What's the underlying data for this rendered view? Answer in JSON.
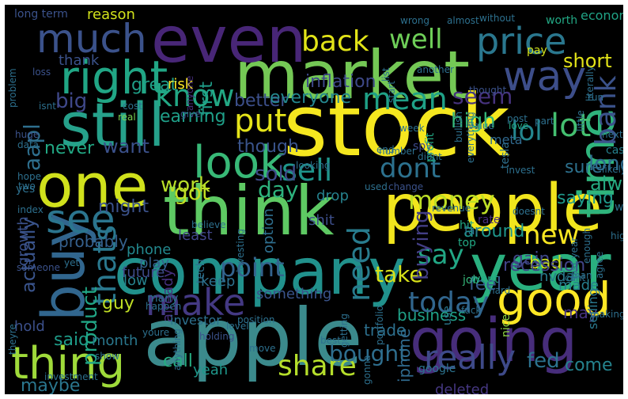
{
  "words": [
    {
      "text": "stock",
      "color": "#f5e71f"
    },
    {
      "text": "apple",
      "color": "#3b8a8c"
    },
    {
      "text": "market",
      "color": "#74c855"
    },
    {
      "text": "people",
      "color": "#f1e51d"
    },
    {
      "text": "think",
      "color": "#5ec963"
    },
    {
      "text": "company",
      "color": "#21918c"
    },
    {
      "text": "still",
      "color": "#26a18b"
    },
    {
      "text": "one",
      "color": "#d0e11c"
    },
    {
      "text": "even",
      "color": "#482677"
    },
    {
      "text": "going",
      "color": "#472d7b"
    },
    {
      "text": "year",
      "color": "#2ab07f"
    },
    {
      "text": "buy",
      "color": "#31668e"
    },
    {
      "text": "time",
      "color": "#2fb47c"
    },
    {
      "text": "price",
      "color": "#2a778e"
    },
    {
      "text": "right",
      "color": "#21a685"
    },
    {
      "text": "much",
      "color": "#3b528b"
    },
    {
      "text": "way",
      "color": "#3d4e8a"
    },
    {
      "text": "good",
      "color": "#fde725"
    },
    {
      "text": "thing",
      "color": "#9fda3a"
    },
    {
      "text": "look",
      "color": "#38b977"
    },
    {
      "text": "see",
      "color": "#2b758e"
    },
    {
      "text": "make",
      "color": "#443983"
    },
    {
      "text": "know",
      "color": "#22a884"
    },
    {
      "text": "back",
      "color": "#e2e418"
    },
    {
      "text": "well",
      "color": "#6ece58"
    },
    {
      "text": "put",
      "color": "#e5e419"
    },
    {
      "text": "lot",
      "color": "#44bf70"
    },
    {
      "text": "lol",
      "color": "#24868e"
    },
    {
      "text": "sell",
      "color": "#1f958b"
    },
    {
      "text": "dont",
      "color": "#2c718e"
    },
    {
      "text": "mean",
      "color": "#1fa187"
    },
    {
      "text": "money",
      "color": "#bddf26"
    },
    {
      "text": "need",
      "color": "#287c8e"
    },
    {
      "text": "really",
      "color": "#3e4a89"
    },
    {
      "text": "today",
      "color": "#31668e"
    },
    {
      "text": "share",
      "color": "#b5de2b"
    },
    {
      "text": "bank",
      "color": "#3b528b"
    },
    {
      "text": "new",
      "color": "#f8e621"
    },
    {
      "text": "thats",
      "color": "#2a788e"
    },
    {
      "text": "say",
      "color": "#22a785"
    },
    {
      "text": "aapl",
      "color": "#2e6f8e"
    },
    {
      "text": "big",
      "color": "#3f4889"
    },
    {
      "text": "sold",
      "color": "#3e4c8a"
    },
    {
      "text": "fed",
      "color": "#2c728e"
    },
    {
      "text": "seem",
      "color": "#46327e"
    },
    {
      "text": "high",
      "color": "#35b779"
    },
    {
      "text": "want",
      "color": "#3b518b"
    },
    {
      "text": "never",
      "color": "#22a884"
    },
    {
      "text": "got",
      "color": "#c2df23"
    },
    {
      "text": "day",
      "color": "#2db27d"
    },
    {
      "text": "work",
      "color": "#b8de29"
    },
    {
      "text": "point",
      "color": "#33638d"
    },
    {
      "text": "take",
      "color": "#d8e219"
    },
    {
      "text": "buying",
      "color": "#433e85"
    },
    {
      "text": "said",
      "color": "#1e9c89"
    },
    {
      "text": "bought",
      "color": "#2e6e8e"
    },
    {
      "text": "product",
      "color": "#21a685"
    },
    {
      "text": "actually",
      "color": "#3a548c"
    },
    {
      "text": "probably",
      "color": "#35608d"
    },
    {
      "text": "alway",
      "color": "#25ab82"
    },
    {
      "text": "inflation",
      "color": "#3e4989"
    },
    {
      "text": "better",
      "color": "#3c4f8a"
    },
    {
      "text": "earning",
      "color": "#1f9f88"
    },
    {
      "text": "great",
      "color": "#1fa088"
    },
    {
      "text": "risk",
      "color": "#fde725"
    },
    {
      "text": "first",
      "color": "#1f9e89"
    },
    {
      "text": "everyone",
      "color": "#24878e"
    },
    {
      "text": "though",
      "color": "#3a548c"
    },
    {
      "text": "long",
      "color": "#2f6b8e"
    },
    {
      "text": "short",
      "color": "#e3e418"
    },
    {
      "text": "economy",
      "color": "#20a386"
    },
    {
      "text": "sure",
      "color": "#2d718e"
    },
    {
      "text": "saying",
      "color": "#1f998a"
    },
    {
      "text": "around",
      "color": "#1f968b"
    },
    {
      "text": "feel",
      "color": "#375b8d"
    },
    {
      "text": "gain",
      "color": "#3f4788"
    },
    {
      "text": "bad",
      "color": "#c8e020"
    },
    {
      "text": "might",
      "color": "#3b528b"
    },
    {
      "text": "phone",
      "color": "#23888e"
    },
    {
      "text": "low",
      "color": "#26828e"
    },
    {
      "text": "guy",
      "color": "#c0df25"
    },
    {
      "text": "future",
      "color": "#3e4a89"
    },
    {
      "text": "month",
      "color": "#2a788e"
    },
    {
      "text": "call",
      "color": "#26ad81"
    },
    {
      "text": "yeah",
      "color": "#1f978b"
    },
    {
      "text": "maybe",
      "color": "#2a768e"
    },
    {
      "text": "hold",
      "color": "#3c508b"
    },
    {
      "text": "made",
      "color": "#277f8e"
    },
    {
      "text": "may",
      "color": "#463480"
    },
    {
      "text": "come",
      "color": "#25838e"
    },
    {
      "text": "nvda",
      "color": "#297b8e"
    },
    {
      "text": "recession",
      "color": "#414487"
    },
    {
      "text": "business",
      "color": "#1fa187"
    },
    {
      "text": "iphone",
      "color": "#306a8e"
    },
    {
      "text": "trade",
      "color": "#2d708e"
    },
    {
      "text": "something",
      "color": "#3a548c"
    },
    {
      "text": "drop",
      "color": "#26828e"
    },
    {
      "text": "shit",
      "color": "#3d4e8a"
    },
    {
      "text": "option",
      "color": "#2e6e8e"
    },
    {
      "text": "play",
      "color": "#34618d"
    },
    {
      "text": "keep",
      "color": "#2d718e"
    },
    {
      "text": "least",
      "color": "#414487"
    },
    {
      "text": "already",
      "color": "#46307e"
    },
    {
      "text": "investor",
      "color": "#2d708e"
    },
    {
      "text": "reason",
      "color": "#d2e21b"
    },
    {
      "text": "long term",
      "color": "#3b528b"
    },
    {
      "text": "thank",
      "color": "#3b528b"
    },
    {
      "text": "deleted",
      "color": "#453781"
    },
    {
      "text": "google",
      "color": "#2c738e"
    },
    {
      "text": "tesla",
      "color": "#2d708e"
    },
    {
      "text": "meta",
      "color": "#30698e"
    },
    {
      "text": "cash",
      "color": "#26818e"
    },
    {
      "text": "spy",
      "color": "#3e4a89"
    },
    {
      "text": "world",
      "color": "#2d708e"
    },
    {
      "text": "growth",
      "color": "#3b528b"
    },
    {
      "text": "tech",
      "color": "#2d708e"
    },
    {
      "text": "rate",
      "color": "#472d7b"
    },
    {
      "text": "hit",
      "color": "#22a884"
    },
    {
      "text": "far",
      "color": "#2d708e"
    },
    {
      "text": "job",
      "color": "#35b779"
    },
    {
      "text": "top",
      "color": "#22a884"
    },
    {
      "text": "use",
      "color": "#2a788e"
    },
    {
      "text": "went",
      "color": "#22a884"
    },
    {
      "text": "nice",
      "color": "#8fd744"
    },
    {
      "text": "selling",
      "color": "#2a788e"
    },
    {
      "text": "yes",
      "color": "#2d708e"
    },
    {
      "text": "two",
      "color": "#2d708e"
    },
    {
      "text": "index",
      "color": "#2d708e"
    },
    {
      "text": "hope",
      "color": "#2d708e"
    },
    {
      "text": "data",
      "color": "#2d708e"
    },
    {
      "text": "huge",
      "color": "#3b528b"
    },
    {
      "text": "real",
      "color": "#7ad151"
    },
    {
      "text": "cost",
      "color": "#2d708e"
    },
    {
      "text": "loss",
      "color": "#3b528b"
    },
    {
      "text": "pay",
      "color": "#d2e21b"
    },
    {
      "text": "wrong",
      "color": "#2d708e"
    },
    {
      "text": "almost",
      "color": "#2d708e"
    },
    {
      "text": "without",
      "color": "#2d708e"
    },
    {
      "text": "worth",
      "color": "#22a884"
    },
    {
      "text": "another",
      "color": "#2d708e"
    },
    {
      "text": "value",
      "color": "#2d708e"
    },
    {
      "text": "post",
      "color": "#2d708e"
    },
    {
      "text": "love",
      "color": "#22a884"
    },
    {
      "text": "part",
      "color": "#2d708e"
    },
    {
      "text": "run",
      "color": "#2d708e"
    },
    {
      "text": "next",
      "color": "#2d708e"
    },
    {
      "text": "likely",
      "color": "#2d708e"
    },
    {
      "text": "week",
      "color": "#2d708e"
    },
    {
      "text": "end",
      "color": "#2d708e"
    },
    {
      "text": "number",
      "color": "#2d708e"
    },
    {
      "text": "give",
      "color": "#3b528b"
    },
    {
      "text": "many",
      "color": "#2d708e"
    },
    {
      "text": "anyone",
      "color": "#472d7b"
    },
    {
      "text": "looking",
      "color": "#2d708e"
    },
    {
      "text": "isnt",
      "color": "#2d708e"
    },
    {
      "text": "profit",
      "color": "#22a884"
    },
    {
      "text": "bullish",
      "color": "#2d708e"
    },
    {
      "text": "everything",
      "color": "#2d708e"
    },
    {
      "text": "invest",
      "color": "#2d708e"
    },
    {
      "text": "doesnt",
      "color": "#2d708e"
    },
    {
      "text": "last year",
      "color": "#2d708e"
    },
    {
      "text": "enough",
      "color": "#2d708e"
    },
    {
      "text": "agree",
      "color": "#2d708e"
    },
    {
      "text": "higher",
      "color": "#2d708e"
    },
    {
      "text": "man",
      "color": "#2d708e"
    },
    {
      "text": "cant",
      "color": "#2d708e"
    },
    {
      "text": "hard",
      "color": "#2d708e"
    },
    {
      "text": "revenue",
      "color": "#2d708e"
    },
    {
      "text": "change",
      "color": "#3b528b"
    },
    {
      "text": "didnt",
      "color": "#2d708e"
    },
    {
      "text": "used",
      "color": "#2d708e"
    },
    {
      "text": "investing",
      "color": "#2d708e"
    },
    {
      "text": "position",
      "color": "#2d708e"
    },
    {
      "text": "level",
      "color": "#2d708e"
    },
    {
      "text": "youre",
      "color": "#2d708e"
    },
    {
      "text": "theyre",
      "color": "#2d708e"
    },
    {
      "text": "holding",
      "color": "#3b528b"
    },
    {
      "text": "happen",
      "color": "#2d708e"
    },
    {
      "text": "believe",
      "color": "#2d708e"
    },
    {
      "text": "someone",
      "color": "#3b528b"
    },
    {
      "text": "yet",
      "color": "#2d708e"
    },
    {
      "text": "show",
      "color": "#2d708e"
    },
    {
      "text": "investment",
      "color": "#2d708e"
    },
    {
      "text": "anything",
      "color": "#2d708e"
    },
    {
      "text": "move",
      "color": "#2d708e"
    },
    {
      "text": "best",
      "color": "#2d708e"
    },
    {
      "text": "getting",
      "color": "#2d708e"
    },
    {
      "text": "portfolio",
      "color": "#2d708e"
    },
    {
      "text": "gonna",
      "color": "#2d708e"
    },
    {
      "text": "making",
      "color": "#2d708e"
    },
    {
      "text": "fuck",
      "color": "#2d708e"
    },
    {
      "text": "literally",
      "color": "#2d708e"
    },
    {
      "text": "start",
      "color": "#2d708e"
    },
    {
      "text": "list",
      "color": "#2d708e"
    },
    {
      "text": "thought",
      "color": "#3b528b"
    },
    {
      "text": "little",
      "color": "#2d708e"
    },
    {
      "text": "problem",
      "color": "#2d708e"
    }
  ]
}
